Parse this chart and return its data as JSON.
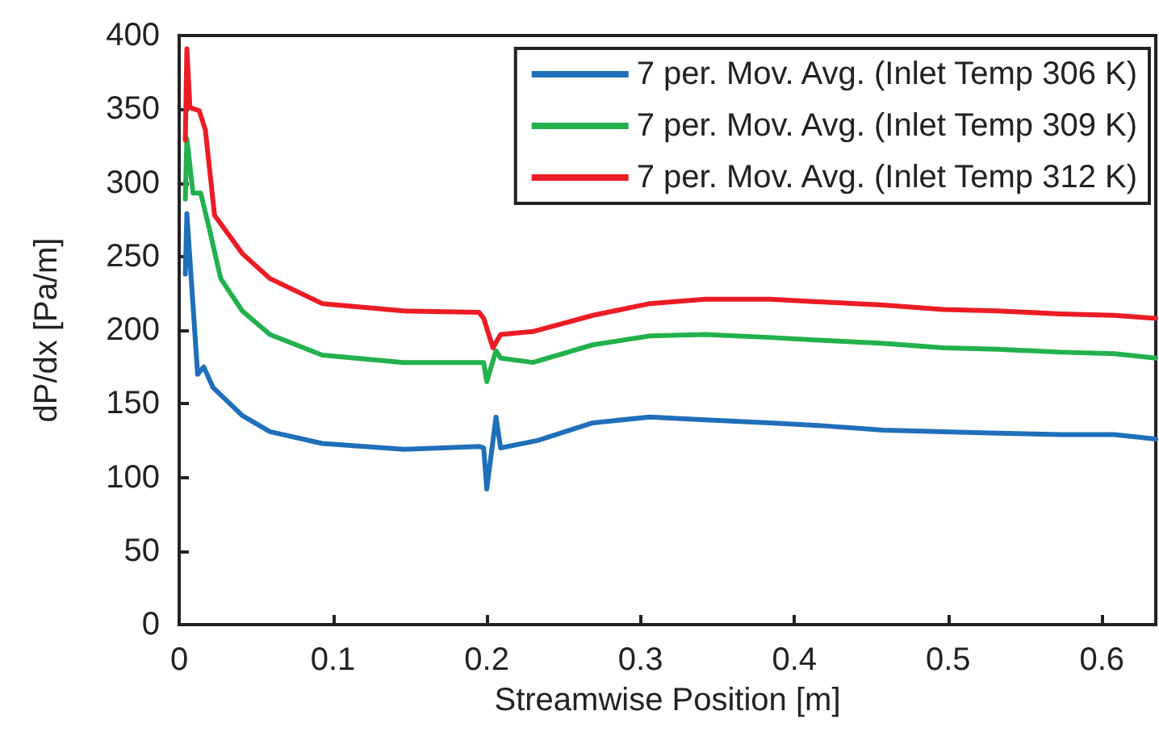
{
  "chart_data": {
    "type": "line",
    "xlabel": "Streamwise Position [m]",
    "ylabel": "dP/dx [Pa/m]",
    "xlim": [
      0,
      0.635
    ],
    "xticks": [
      0,
      0.1,
      0.2,
      0.3,
      0.4,
      0.5,
      0.6
    ],
    "ylim": [
      0,
      400
    ],
    "yticks": [
      0,
      50,
      100,
      150,
      200,
      250,
      300,
      350,
      400
    ],
    "grid": false,
    "legend": "top right",
    "marker": "none",
    "line_style": "solid",
    "series": [
      {
        "name": "7 per. Mov. Avg. (Inlet Temp 306 K)",
        "color": "#1f6fba",
        "x": [
          0.004,
          0.005,
          0.012,
          0.016,
          0.022,
          0.041,
          0.059,
          0.093,
          0.146,
          0.195,
          0.198,
          0.2,
          0.206,
          0.209,
          0.233,
          0.269,
          0.306,
          0.342,
          0.384,
          0.419,
          0.458,
          0.497,
          0.532,
          0.573,
          0.608,
          0.635
        ],
        "values": [
          238,
          279,
          170,
          175,
          161,
          142,
          131,
          123,
          119,
          121,
          120,
          92,
          141,
          120,
          125,
          137,
          141,
          139,
          137,
          135,
          132,
          131,
          130,
          129,
          129,
          126
        ]
      },
      {
        "name": "7 per. Mov. Avg. (Inlet Temp 309 K)",
        "color": "#22b14c",
        "x": [
          0.004,
          0.005,
          0.009,
          0.014,
          0.02,
          0.027,
          0.041,
          0.059,
          0.093,
          0.146,
          0.195,
          0.198,
          0.2,
          0.206,
          0.209,
          0.23,
          0.269,
          0.306,
          0.342,
          0.384,
          0.419,
          0.458,
          0.497,
          0.532,
          0.573,
          0.608,
          0.635
        ],
        "values": [
          289,
          330,
          293,
          293,
          267,
          235,
          213,
          197,
          183,
          178,
          178,
          178,
          165,
          186,
          181,
          178,
          190,
          196,
          197,
          195,
          193,
          191,
          188,
          187,
          185,
          184,
          181
        ]
      },
      {
        "name": "7 per. Mov. Avg. (Inlet Temp 312 K)",
        "color": "#ec1c24",
        "x": [
          0.004,
          0.005,
          0.007,
          0.013,
          0.017,
          0.023,
          0.041,
          0.059,
          0.093,
          0.146,
          0.195,
          0.198,
          0.204,
          0.209,
          0.23,
          0.269,
          0.306,
          0.342,
          0.384,
          0.419,
          0.458,
          0.497,
          0.532,
          0.573,
          0.608,
          0.635
        ],
        "values": [
          329,
          391,
          351,
          349,
          336,
          278,
          252,
          235,
          218,
          213,
          212,
          208,
          188,
          197,
          199,
          210,
          218,
          221,
          221,
          219,
          217,
          214,
          213,
          211,
          210,
          208
        ]
      }
    ]
  }
}
